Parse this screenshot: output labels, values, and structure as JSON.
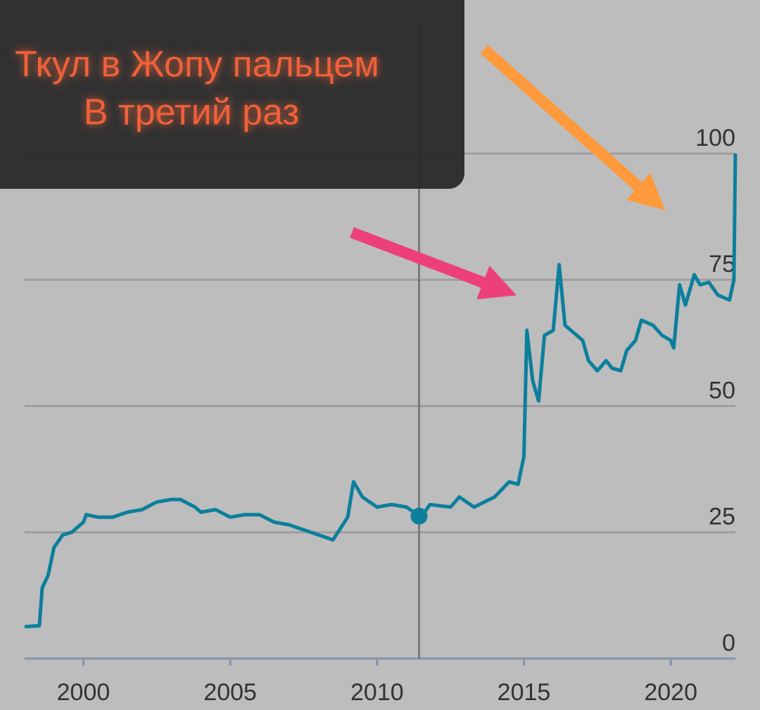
{
  "chart_data": {
    "type": "line",
    "x": [
      1998.0,
      1998.5,
      1998.6,
      1998.8,
      1999.0,
      1999.3,
      1999.6,
      2000.0,
      2000.1,
      2000.5,
      2001.0,
      2001.5,
      2002.0,
      2002.5,
      2003.0,
      2003.3,
      2003.8,
      2004.0,
      2004.5,
      2005.0,
      2005.5,
      2006.0,
      2006.5,
      2007.0,
      2007.5,
      2008.0,
      2008.5,
      2009.0,
      2009.2,
      2009.5,
      2010.0,
      2010.5,
      2011.0,
      2011.5,
      2011.8,
      2012.5,
      2012.8,
      2013.3,
      2014.0,
      2014.5,
      2014.8,
      2015.0,
      2015.1,
      2015.3,
      2015.5,
      2015.7,
      2016.0,
      2016.2,
      2016.4,
      2016.8,
      2017.0,
      2017.2,
      2017.5,
      2017.8,
      2018.0,
      2018.3,
      2018.5,
      2018.8,
      2019.0,
      2019.4,
      2019.7,
      2020.0,
      2020.1,
      2020.3,
      2020.5,
      2020.8,
      2021.0,
      2021.3,
      2021.6,
      2022.0,
      2022.15,
      2022.2
    ],
    "values": [
      6.3,
      6.5,
      14,
      16.5,
      22,
      24.5,
      25,
      27,
      28.5,
      28,
      28,
      29,
      29.5,
      31,
      31.5,
      31.5,
      30,
      29,
      29.5,
      28,
      28.5,
      28.5,
      27,
      26.5,
      25.5,
      24.5,
      23.5,
      28,
      35,
      32,
      30,
      30.5,
      30,
      28,
      30.5,
      30,
      32,
      30,
      32,
      35,
      34.5,
      40,
      65,
      55,
      51,
      64,
      65,
      78,
      66,
      64,
      63,
      59,
      57,
      59,
      57.5,
      57,
      61,
      63,
      67,
      66,
      64,
      63,
      61.5,
      74,
      70,
      76,
      74,
      74.5,
      72,
      71,
      75,
      100
    ],
    "color": "#0b7f9c",
    "xlim": [
      1998,
      2022.2
    ],
    "ylim": [
      0,
      100
    ],
    "xticks": [
      2000,
      2005,
      2010,
      2015,
      2020
    ],
    "yticks": [
      0,
      25,
      50,
      75,
      100
    ],
    "grid": true,
    "marker": {
      "x": 2011.43,
      "y": 28.2
    },
    "annotation": [
      "Ткул в Жопу пальцем",
      "В третий раз"
    ]
  }
}
